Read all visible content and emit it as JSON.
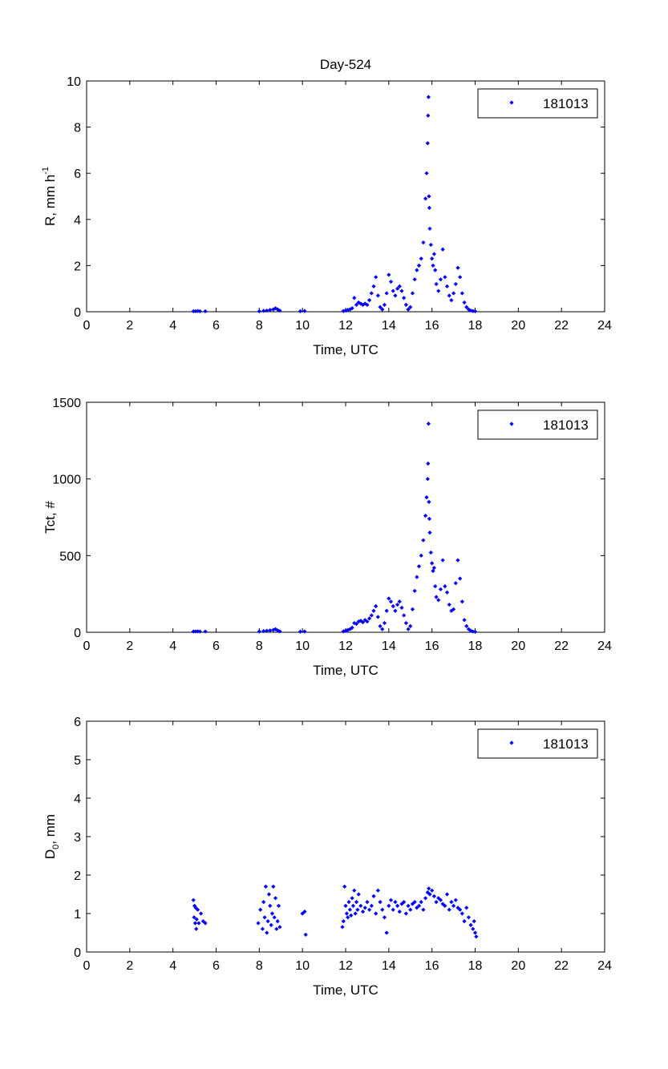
{
  "chart_data": [
    {
      "type": "scatter",
      "title": "Day-524",
      "xlabel": "Time, UTC",
      "ylabel": {
        "main": "R, mm h",
        "sup": "-1"
      },
      "xlim": [
        0,
        24
      ],
      "ylim": [
        0,
        10
      ],
      "xticks": [
        "0",
        "2",
        "4",
        "6",
        "8",
        "10",
        "12",
        "14",
        "16",
        "18",
        "20",
        "22",
        "24"
      ],
      "yticks": [
        "0",
        "2",
        "4",
        "6",
        "8",
        "10"
      ],
      "legend": {
        "label": "181013",
        "position": "top-right"
      },
      "marker_color": "#0000ff",
      "series": [
        {
          "name": "181013",
          "x": [
            4.95,
            5.05,
            5.15,
            5.25,
            5.5,
            8.0,
            8.2,
            8.35,
            8.5,
            8.65,
            8.75,
            8.85,
            8.95,
            9.9,
            10.1,
            11.9,
            12.0,
            12.1,
            12.2,
            12.3,
            12.4,
            12.5,
            12.6,
            12.7,
            12.8,
            12.9,
            13.0,
            13.1,
            13.2,
            13.3,
            13.4,
            13.5,
            13.6,
            13.7,
            13.8,
            13.9,
            14.0,
            14.1,
            14.2,
            14.3,
            14.4,
            14.5,
            14.6,
            14.7,
            14.8,
            14.9,
            15.0,
            15.1,
            15.2,
            15.3,
            15.4,
            15.5,
            15.6,
            15.7,
            15.75,
            15.8,
            15.82,
            15.84,
            15.86,
            15.88,
            15.9,
            15.95,
            16.0,
            16.05,
            16.1,
            16.15,
            16.2,
            16.3,
            16.4,
            16.5,
            16.6,
            16.7,
            16.8,
            16.9,
            17.0,
            17.1,
            17.2,
            17.3,
            17.4,
            17.5,
            17.6,
            17.7,
            17.8,
            17.9,
            18.0
          ],
          "y": [
            0.02,
            0.02,
            0.03,
            0.02,
            0.02,
            0.02,
            0.04,
            0.05,
            0.08,
            0.1,
            0.15,
            0.1,
            0.05,
            0.02,
            0.03,
            0.03,
            0.05,
            0.08,
            0.1,
            0.15,
            0.6,
            0.3,
            0.4,
            0.35,
            0.3,
            0.35,
            0.3,
            0.5,
            0.8,
            1.1,
            1.5,
            0.7,
            0.2,
            0.1,
            0.3,
            0.8,
            1.6,
            1.3,
            0.9,
            0.7,
            1.0,
            1.1,
            0.9,
            0.6,
            0.3,
            0.1,
            0.2,
            0.8,
            1.4,
            1.8,
            2.0,
            2.3,
            3.0,
            4.9,
            6.0,
            7.3,
            8.5,
            9.3,
            5.0,
            4.5,
            3.6,
            2.9,
            2.3,
            2.0,
            2.5,
            1.8,
            1.2,
            0.9,
            1.4,
            2.7,
            1.5,
            1.1,
            0.7,
            0.5,
            0.8,
            1.2,
            1.9,
            1.5,
            0.8,
            0.4,
            0.2,
            0.1,
            0.05,
            0.03,
            0.02
          ]
        }
      ]
    },
    {
      "type": "scatter",
      "title": "",
      "xlabel": "Time, UTC",
      "ylabel": {
        "main": "Tct, #",
        "sup": ""
      },
      "xlim": [
        0,
        24
      ],
      "ylim": [
        0,
        1500
      ],
      "xticks": [
        "0",
        "2",
        "4",
        "6",
        "8",
        "10",
        "12",
        "14",
        "16",
        "18",
        "20",
        "22",
        "24"
      ],
      "yticks": [
        "0",
        "500",
        "1000",
        "1500"
      ],
      "legend": {
        "label": "181013",
        "position": "top-right"
      },
      "marker_color": "#0000ff",
      "series": [
        {
          "name": "181013",
          "x": [
            4.95,
            5.05,
            5.15,
            5.25,
            5.5,
            8.0,
            8.2,
            8.35,
            8.5,
            8.65,
            8.75,
            8.85,
            8.95,
            9.9,
            10.1,
            11.9,
            12.0,
            12.1,
            12.2,
            12.3,
            12.4,
            12.5,
            12.6,
            12.7,
            12.8,
            12.9,
            13.0,
            13.1,
            13.2,
            13.3,
            13.4,
            13.5,
            13.6,
            13.7,
            13.8,
            13.9,
            14.0,
            14.1,
            14.2,
            14.3,
            14.4,
            14.5,
            14.6,
            14.7,
            14.8,
            14.9,
            15.0,
            15.1,
            15.2,
            15.3,
            15.4,
            15.5,
            15.6,
            15.7,
            15.75,
            15.8,
            15.82,
            15.84,
            15.86,
            15.88,
            15.9,
            15.95,
            16.0,
            16.05,
            16.1,
            16.15,
            16.2,
            16.3,
            16.4,
            16.5,
            16.6,
            16.7,
            16.8,
            16.9,
            17.0,
            17.1,
            17.2,
            17.3,
            17.4,
            17.5,
            17.6,
            17.7,
            17.8,
            17.9,
            18.0
          ],
          "y": [
            5,
            5,
            6,
            5,
            5,
            5,
            8,
            10,
            12,
            15,
            20,
            12,
            6,
            4,
            5,
            6,
            10,
            15,
            20,
            30,
            60,
            55,
            70,
            75,
            65,
            80,
            70,
            90,
            110,
            140,
            170,
            100,
            40,
            20,
            60,
            140,
            220,
            200,
            170,
            140,
            180,
            200,
            160,
            110,
            60,
            20,
            40,
            150,
            270,
            360,
            430,
            500,
            600,
            760,
            880,
            1000,
            1100,
            1360,
            850,
            740,
            650,
            520,
            450,
            400,
            420,
            300,
            230,
            210,
            280,
            470,
            300,
            260,
            180,
            140,
            150,
            320,
            470,
            350,
            200,
            80,
            40,
            20,
            10,
            5,
            3
          ]
        }
      ]
    },
    {
      "type": "scatter",
      "title": "",
      "xlabel": "Time, UTC",
      "ylabel": {
        "main": "D",
        "sub": "0",
        "after": ", mm"
      },
      "xlim": [
        0,
        24
      ],
      "ylim": [
        0,
        6
      ],
      "xticks": [
        "0",
        "2",
        "4",
        "6",
        "8",
        "10",
        "12",
        "14",
        "16",
        "18",
        "20",
        "22",
        "24"
      ],
      "yticks": [
        "0",
        "1",
        "2",
        "3",
        "4",
        "5",
        "6"
      ],
      "legend": {
        "label": "181013",
        "position": "top-right"
      },
      "marker_color": "#0000ff",
      "series": [
        {
          "name": "181013",
          "x": [
            4.95,
            4.98,
            5.0,
            5.03,
            5.05,
            5.08,
            5.1,
            5.15,
            5.2,
            5.3,
            5.4,
            5.5,
            7.95,
            8.05,
            8.15,
            8.2,
            8.25,
            8.3,
            8.35,
            8.4,
            8.45,
            8.5,
            8.55,
            8.6,
            8.65,
            8.7,
            8.75,
            8.8,
            8.85,
            8.9,
            8.95,
            10.0,
            10.1,
            10.15,
            11.85,
            11.9,
            11.95,
            12.0,
            12.05,
            12.1,
            12.15,
            12.2,
            12.25,
            12.3,
            12.35,
            12.4,
            12.45,
            12.5,
            12.55,
            12.6,
            12.7,
            12.8,
            12.9,
            13.0,
            13.1,
            13.2,
            13.3,
            13.4,
            13.5,
            13.6,
            13.7,
            13.8,
            13.9,
            14.0,
            14.1,
            14.2,
            14.3,
            14.4,
            14.5,
            14.6,
            14.7,
            14.8,
            14.9,
            15.0,
            15.1,
            15.2,
            15.3,
            15.4,
            15.5,
            15.6,
            15.7,
            15.8,
            15.85,
            15.9,
            16.0,
            16.1,
            16.2,
            16.3,
            16.4,
            16.5,
            16.6,
            16.7,
            16.8,
            16.9,
            17.0,
            17.1,
            17.2,
            17.3,
            17.4,
            17.5,
            17.6,
            17.7,
            17.8,
            17.9,
            17.95,
            18.0,
            18.05
          ],
          "y": [
            1.35,
            0.9,
            1.2,
            0.75,
            1.15,
            0.6,
            0.85,
            1.1,
            0.75,
            1.0,
            0.8,
            0.75,
            0.75,
            1.1,
            0.6,
            1.3,
            0.9,
            1.7,
            0.5,
            0.8,
            1.5,
            1.2,
            0.7,
            1.0,
            1.7,
            0.9,
            1.4,
            0.6,
            0.8,
            1.2,
            0.65,
            1.0,
            1.05,
            0.45,
            0.65,
            0.8,
            1.7,
            1.2,
            1.0,
            0.9,
            1.3,
            1.1,
            0.95,
            1.4,
            1.2,
            1.6,
            1.0,
            1.3,
            1.1,
            1.5,
            1.2,
            1.05,
            1.15,
            1.3,
            1.1,
            1.2,
            1.45,
            1.0,
            1.6,
            1.3,
            1.1,
            0.9,
            0.5,
            1.2,
            1.35,
            1.1,
            1.3,
            1.2,
            1.05,
            1.25,
            1.3,
            1.0,
            1.2,
            1.1,
            1.25,
            1.3,
            1.15,
            1.2,
            1.3,
            1.1,
            1.4,
            1.55,
            1.65,
            1.5,
            1.6,
            1.45,
            1.3,
            1.4,
            1.35,
            1.25,
            1.2,
            1.5,
            1.1,
            1.3,
            1.2,
            1.35,
            1.15,
            1.1,
            1.0,
            0.8,
            1.15,
            0.9,
            0.7,
            0.6,
            0.8,
            0.5,
            0.4
          ]
        }
      ]
    }
  ]
}
